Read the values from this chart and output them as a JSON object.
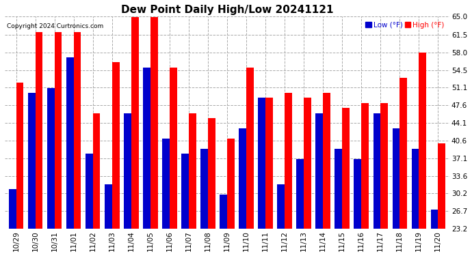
{
  "title": "Dew Point Daily High/Low 20241121",
  "copyright": "Copyright 2024 Curtronics.com",
  "legend_low": "Low (°F)",
  "legend_high": "High (°F)",
  "dates": [
    "10/29",
    "10/30",
    "10/31",
    "11/01",
    "11/02",
    "11/03",
    "11/04",
    "11/05",
    "11/06",
    "11/07",
    "11/08",
    "11/09",
    "11/10",
    "11/11",
    "11/12",
    "11/13",
    "11/14",
    "11/15",
    "11/16",
    "11/17",
    "11/18",
    "11/19",
    "11/20"
  ],
  "high": [
    52.0,
    62.0,
    62.0,
    62.0,
    46.0,
    56.0,
    65.0,
    65.0,
    55.0,
    46.0,
    45.0,
    41.0,
    55.0,
    49.0,
    50.0,
    49.0,
    50.0,
    47.0,
    48.0,
    48.0,
    53.0,
    58.0,
    40.0
  ],
  "low": [
    31.0,
    50.0,
    51.0,
    57.0,
    38.0,
    32.0,
    46.0,
    55.0,
    41.0,
    38.0,
    39.0,
    30.0,
    43.0,
    49.0,
    32.0,
    37.0,
    46.0,
    39.0,
    37.0,
    46.0,
    43.0,
    39.0,
    27.0
  ],
  "ylim": [
    23.2,
    65.0
  ],
  "yticks": [
    23.2,
    26.7,
    30.2,
    33.6,
    37.1,
    40.6,
    44.1,
    47.6,
    51.1,
    54.5,
    58.0,
    61.5,
    65.0
  ],
  "bar_width": 0.38,
  "high_color": "#ff0000",
  "low_color": "#0000cc",
  "bg_color": "#ffffff",
  "grid_color": "#aaaaaa",
  "title_fontsize": 11,
  "tick_fontsize": 7.5,
  "label_fontsize": 8
}
